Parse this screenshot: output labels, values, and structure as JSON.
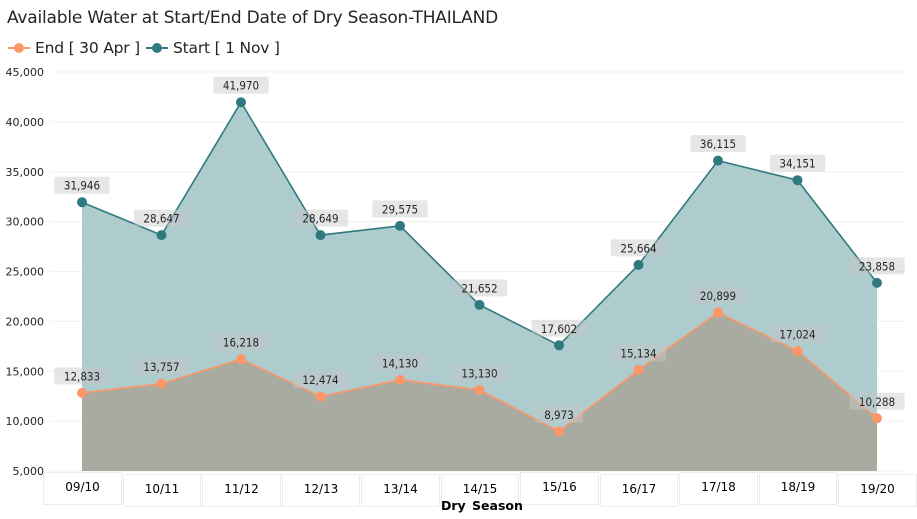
{
  "chart_data": {
    "type": "area",
    "title": "Available Water at Start/End Date of Dry Season-THAILAND",
    "xlabel": "Dry Season",
    "ylabel": "",
    "categories": [
      "09/10",
      "10/11",
      "11/12",
      "12/13",
      "13/14",
      "14/15",
      "15/16",
      "16/17",
      "17/18",
      "18/19",
      "19/20"
    ],
    "ylim": [
      5000,
      45000
    ],
    "yticks": [
      5000,
      10000,
      15000,
      20000,
      25000,
      30000,
      35000,
      40000,
      45000
    ],
    "ytick_labels": [
      "5,000",
      "10,000",
      "15,000",
      "20,000",
      "25,000",
      "30,000",
      "35,000",
      "40,000",
      "45,000"
    ],
    "grid": true,
    "legend_position": "top-left",
    "series": [
      {
        "name": "End [ 30 Apr ]",
        "color": "#FE9666",
        "fill_color": "#A9ABA1",
        "values": [
          12833,
          13757,
          16218,
          12474,
          14130,
          13130,
          8973,
          15134,
          20899,
          17024,
          10288
        ],
        "labels": [
          "12,833",
          "13,757",
          "16,218",
          "12,474",
          "14,130",
          "13,130",
          "8,973",
          "15,134",
          "20,899",
          "17,024",
          "10,288"
        ]
      },
      {
        "name": "Start [ 1 Nov ]",
        "color": "#2F7A7F",
        "fill_color": "#AECBCE",
        "values": [
          31946,
          28647,
          41970,
          28649,
          29575,
          21652,
          17602,
          25664,
          36115,
          34151,
          23858
        ],
        "labels": [
          "31,946",
          "28,647",
          "41,970",
          "28,649",
          "29,575",
          "21,652",
          "17,602",
          "25,664",
          "36,115",
          "34,151",
          "23,858"
        ]
      }
    ]
  }
}
